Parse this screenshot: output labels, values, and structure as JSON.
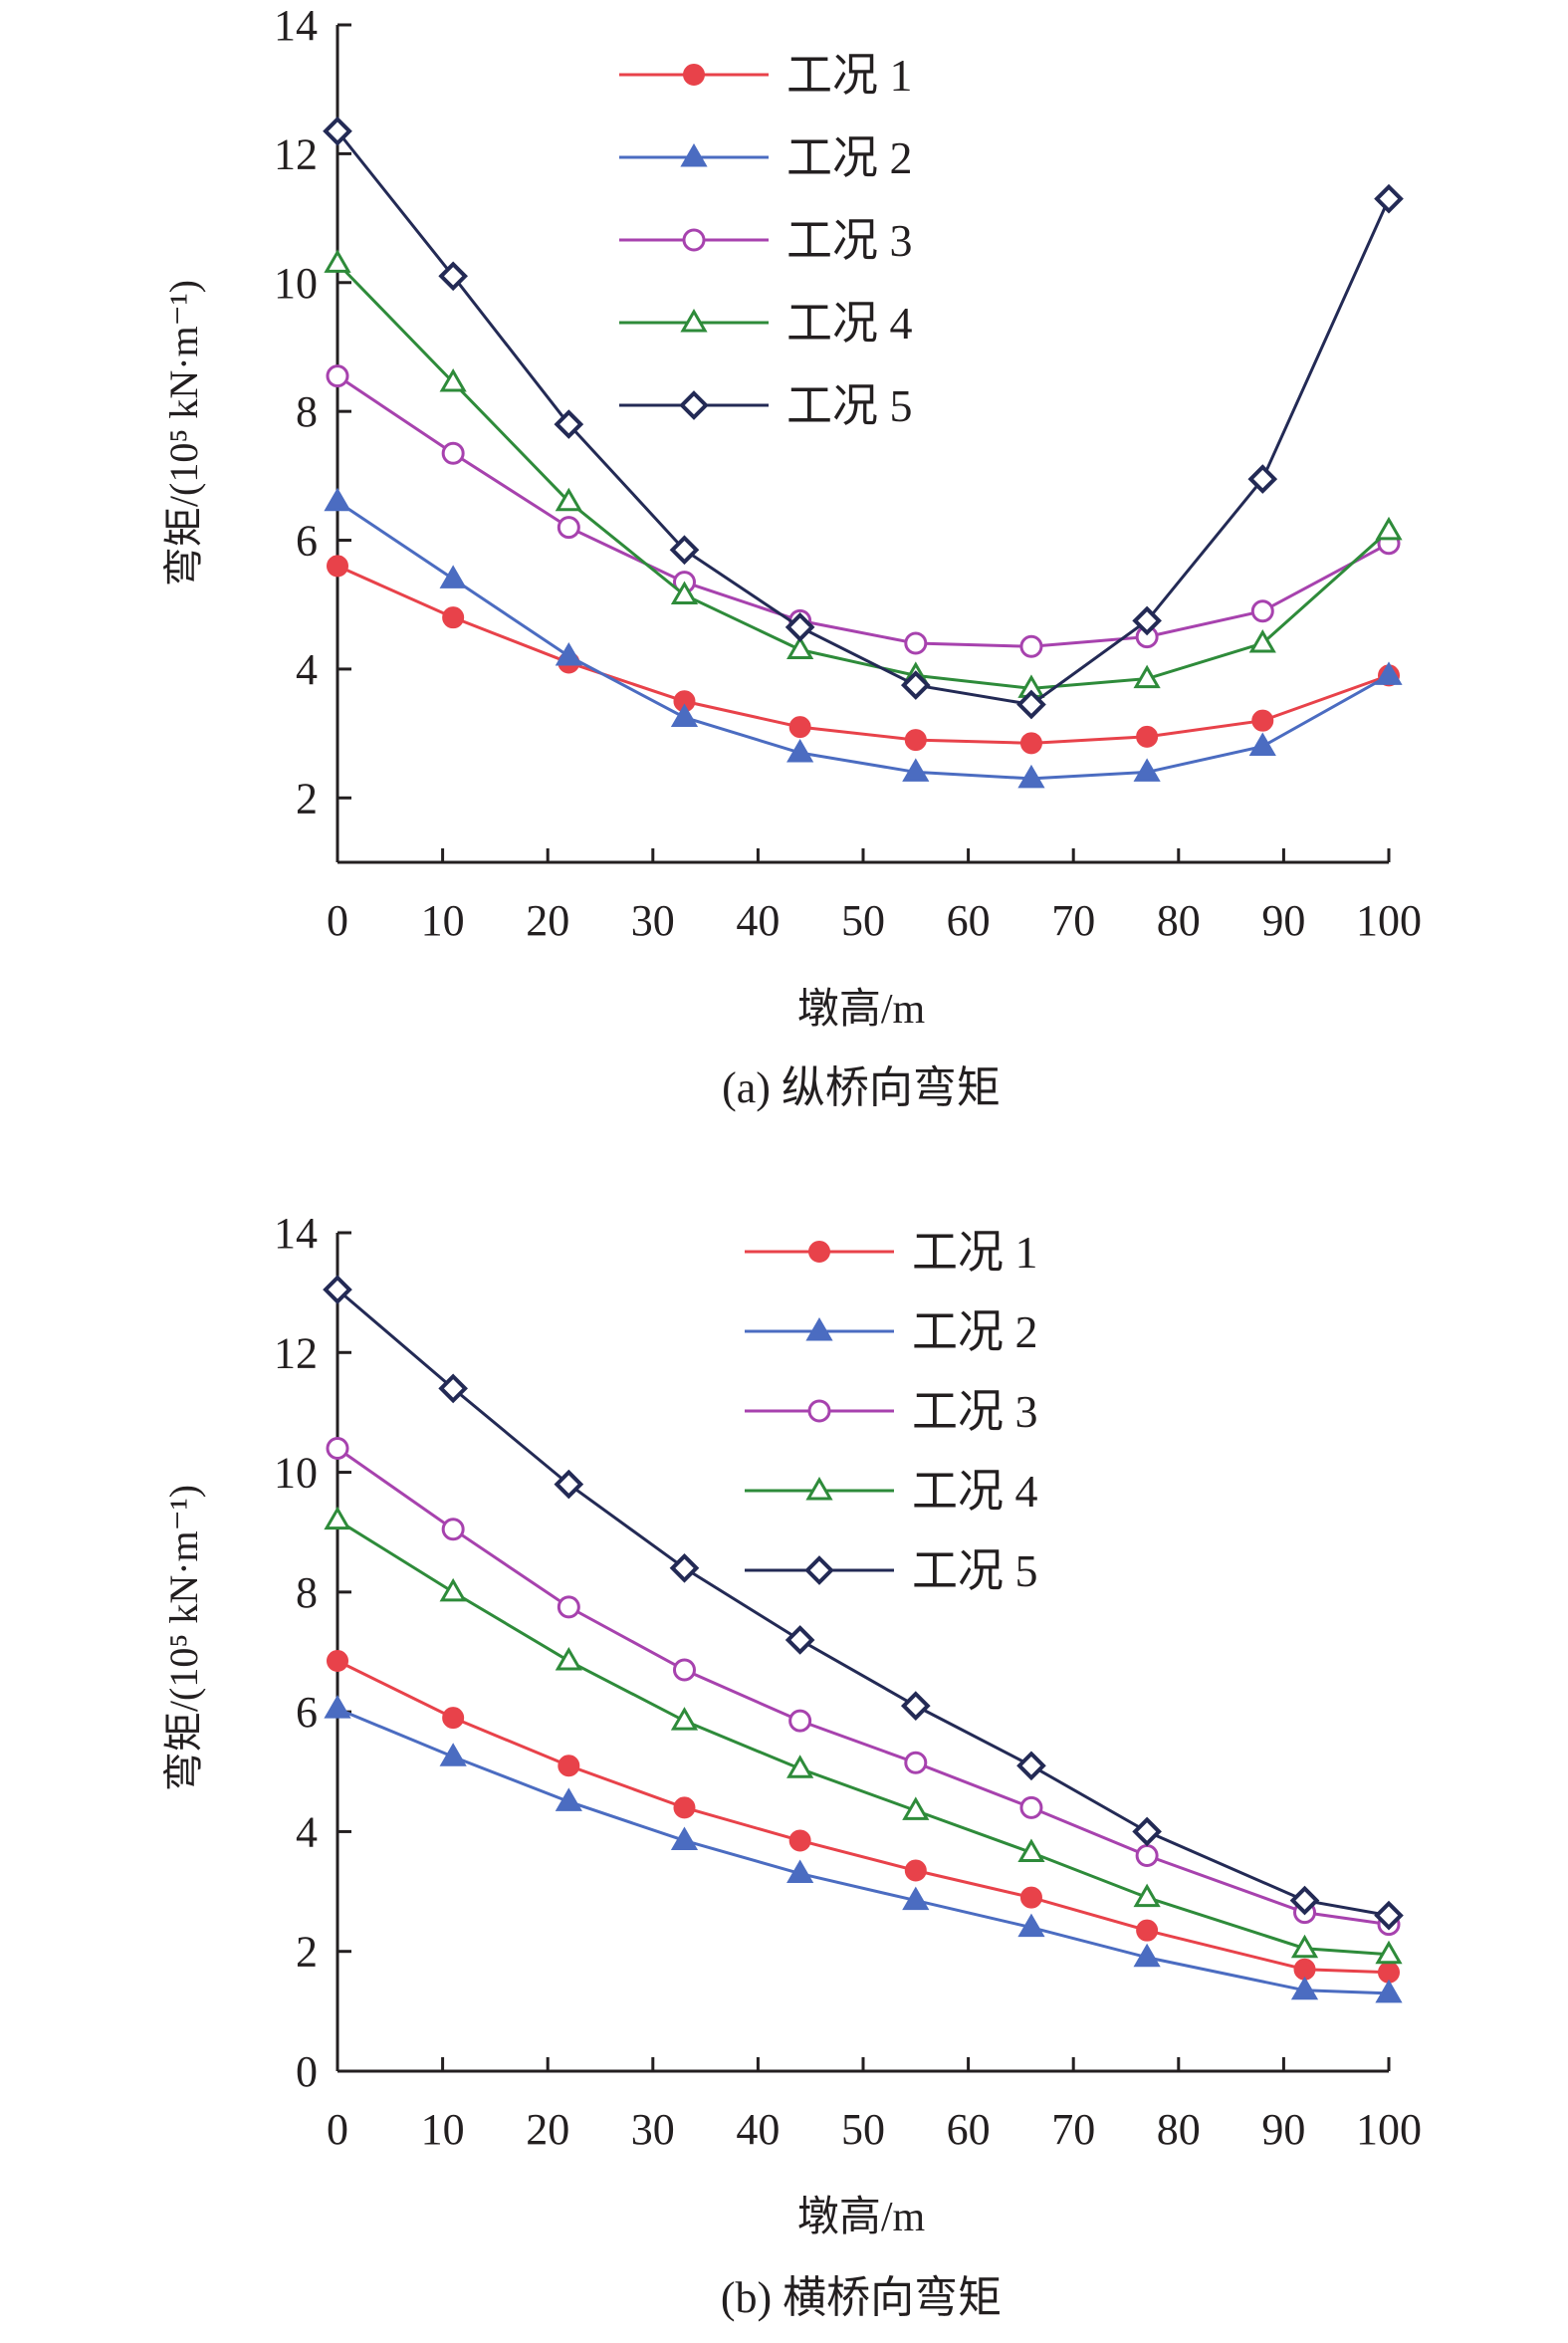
{
  "chart_data": [
    {
      "type": "line",
      "caption": "(a) 纵桥向弯矩",
      "xlabel": "墩高/m",
      "ylabel": "弯矩/(10⁵ kN·m⁻¹)",
      "xlim": [
        0,
        100
      ],
      "ylim": [
        1,
        14
      ],
      "xticks": [
        0,
        10,
        20,
        30,
        40,
        50,
        60,
        70,
        80,
        90,
        100
      ],
      "yticks": [
        2,
        4,
        6,
        8,
        10,
        12,
        14
      ],
      "grid": false,
      "legend_position": "top-center",
      "x": [
        0,
        11,
        22,
        33,
        44,
        55,
        66,
        77,
        88,
        100
      ],
      "series": [
        {
          "name": "工况 1",
          "color": "#e8424a",
          "marker": "circle-filled",
          "values": [
            5.6,
            4.8,
            4.1,
            3.5,
            3.1,
            2.9,
            2.85,
            2.95,
            3.2,
            3.9
          ]
        },
        {
          "name": "工况 2",
          "color": "#4b6cc1",
          "marker": "triangle-filled",
          "values": [
            6.6,
            5.4,
            4.2,
            3.25,
            2.7,
            2.4,
            2.3,
            2.4,
            2.8,
            3.9
          ]
        },
        {
          "name": "工况 3",
          "color": "#a742ae",
          "marker": "circle-open",
          "values": [
            8.55,
            7.35,
            6.2,
            5.35,
            4.75,
            4.4,
            4.35,
            4.5,
            4.9,
            5.95
          ]
        },
        {
          "name": "工况 4",
          "color": "#2e8b3a",
          "marker": "triangle-open",
          "values": [
            10.3,
            8.45,
            6.6,
            5.15,
            4.3,
            3.9,
            3.7,
            3.85,
            4.4,
            6.15
          ]
        },
        {
          "name": "工况 5",
          "color": "#232a55",
          "marker": "diamond",
          "values": [
            12.35,
            10.1,
            7.8,
            5.85,
            4.65,
            3.75,
            3.45,
            4.75,
            6.95,
            11.3
          ]
        }
      ]
    },
    {
      "type": "line",
      "caption": "(b) 横桥向弯矩",
      "xlabel": "墩高/m",
      "ylabel": "弯矩/(10⁵ kN·m⁻¹)",
      "xlim": [
        0,
        100
      ],
      "ylim": [
        0,
        14
      ],
      "xticks": [
        0,
        10,
        20,
        30,
        40,
        50,
        60,
        70,
        80,
        90,
        100
      ],
      "yticks": [
        0,
        2,
        4,
        6,
        8,
        10,
        12,
        14
      ],
      "grid": false,
      "legend_position": "top-right",
      "x": [
        0,
        11,
        22,
        33,
        44,
        55,
        66,
        77,
        92,
        100
      ],
      "series": [
        {
          "name": "工况 1",
          "color": "#e8424a",
          "marker": "circle-filled",
          "values": [
            6.85,
            5.9,
            5.1,
            4.4,
            3.85,
            3.35,
            2.9,
            2.35,
            1.7,
            1.65
          ]
        },
        {
          "name": "工况 2",
          "color": "#4b6cc1",
          "marker": "triangle-filled",
          "values": [
            6.05,
            5.25,
            4.5,
            3.85,
            3.3,
            2.85,
            2.4,
            1.9,
            1.35,
            1.3
          ]
        },
        {
          "name": "工况 3",
          "color": "#a742ae",
          "marker": "circle-open",
          "values": [
            10.4,
            9.05,
            7.75,
            6.7,
            5.85,
            5.15,
            4.4,
            3.6,
            2.65,
            2.45
          ]
        },
        {
          "name": "工况 4",
          "color": "#2e8b3a",
          "marker": "triangle-open",
          "values": [
            9.2,
            8.0,
            6.85,
            5.85,
            5.05,
            4.35,
            3.65,
            2.9,
            2.05,
            1.95
          ]
        },
        {
          "name": "工况 5",
          "color": "#232a55",
          "marker": "diamond",
          "values": [
            13.05,
            11.4,
            9.8,
            8.4,
            7.2,
            6.1,
            5.1,
            4.0,
            2.85,
            2.6
          ]
        }
      ]
    }
  ]
}
